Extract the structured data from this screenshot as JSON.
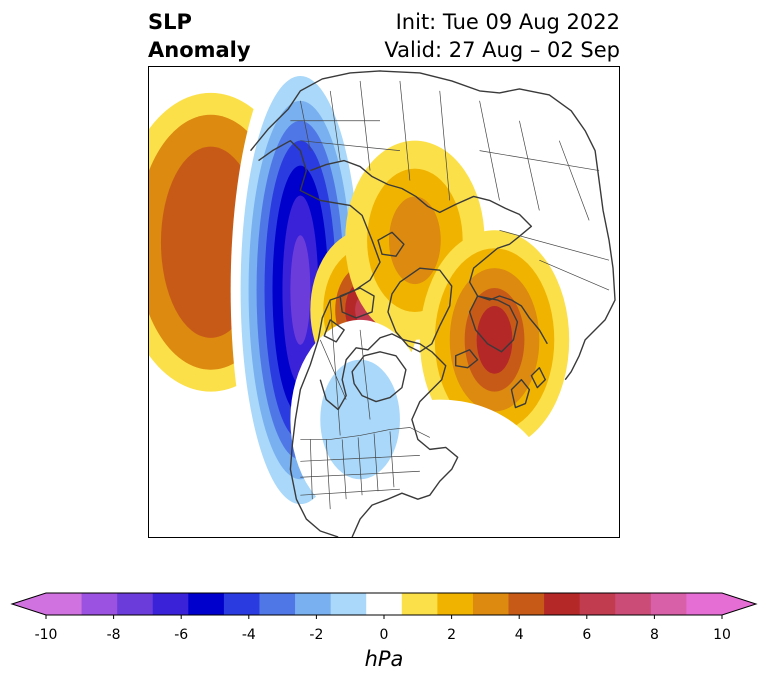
{
  "header": {
    "title_line1": "SLP",
    "title_line2": "Anomaly",
    "init_text": "Init: Tue 09 Aug 2022",
    "valid_text": "Valid: 27 Aug – 02 Sep"
  },
  "colorbar": {
    "unit": "hPa",
    "ticks": [
      "-10",
      "-8",
      "-6",
      "-4",
      "-2",
      "0",
      "2",
      "4",
      "6",
      "8",
      "10"
    ],
    "levels": [
      -10,
      -9,
      -8,
      -7,
      -6,
      -5,
      -4,
      -3,
      -2,
      -1,
      1,
      2,
      3,
      4,
      5,
      6,
      7,
      8,
      9,
      10
    ],
    "colors": [
      "#d072e0",
      "#9b52e0",
      "#6c3cda",
      "#3a22d8",
      "#0000cc",
      "#2a3ce0",
      "#4f78e6",
      "#78b0f0",
      "#a9d8fa",
      "#ffffff",
      "#fbe04a",
      "#f0b400",
      "#dc8a10",
      "#c85a18",
      "#b42828",
      "#c23c50",
      "#cc4c78",
      "#d860a8",
      "#e46ed4"
    ],
    "under_color": "#d072e0",
    "over_color": "#e46ed4"
  },
  "map": {
    "anomalies": [
      {
        "id": "pacific-high",
        "center": [
          210,
          242
        ],
        "peak": 4,
        "radii": [
          [
            95,
            150
          ],
          [
            75,
            128
          ],
          [
            50,
            96
          ]
        ]
      },
      {
        "id": "alaska-low",
        "center": [
          300,
          290
        ],
        "peak": -8,
        "radii": [
          [
            70,
            245
          ],
          [
            60,
            215
          ],
          [
            52,
            190
          ],
          [
            44,
            170
          ],
          [
            36,
            150
          ],
          [
            28,
            125
          ],
          [
            18,
            95
          ],
          [
            10,
            55
          ]
        ]
      },
      {
        "id": "greenland-high",
        "center": [
          365,
          310
        ],
        "peak": 6,
        "radii": [
          [
            55,
            80
          ],
          [
            42,
            62
          ],
          [
            30,
            45
          ],
          [
            20,
            30
          ],
          [
            10,
            16
          ]
        ]
      },
      {
        "id": "arctic-high",
        "center": [
          415,
          240
        ],
        "peak": 3,
        "radii": [
          [
            70,
            100
          ],
          [
            48,
            72
          ],
          [
            26,
            44
          ]
        ]
      },
      {
        "id": "europe-high",
        "center": [
          495,
          340
        ],
        "peak": 5,
        "radii": [
          [
            75,
            110
          ],
          [
            60,
            92
          ],
          [
            45,
            72
          ],
          [
            30,
            52
          ],
          [
            18,
            34
          ]
        ]
      },
      {
        "id": "atlantic-low",
        "center": [
          440,
          490
        ],
        "peak": -1,
        "radii": [
          [
            110,
            90
          ]
        ]
      },
      {
        "id": "hudson-low",
        "center": [
          360,
          420
        ],
        "peak": -2,
        "radii": [
          [
            70,
            100
          ],
          [
            40,
            60
          ]
        ]
      }
    ]
  }
}
